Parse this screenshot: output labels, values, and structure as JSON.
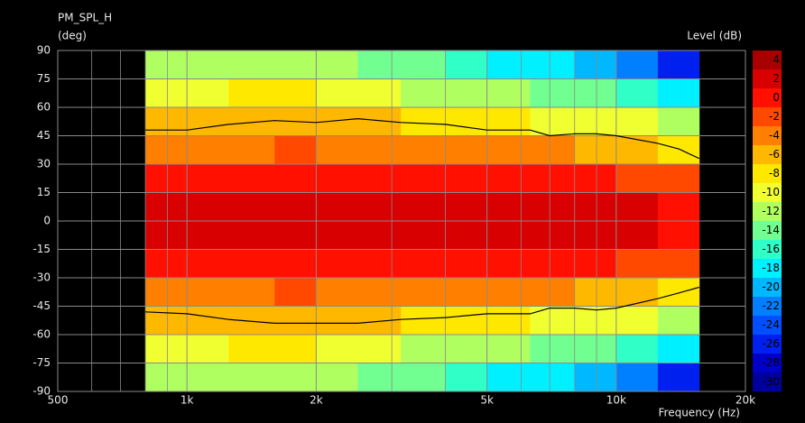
{
  "chart_data": {
    "type": "heatmap",
    "title": "PM_SPL_H",
    "y_label": "(deg)",
    "x_label": "Frequency (Hz)",
    "colorbar_label": "Level (dB)",
    "xlim": [
      500,
      20000
    ],
    "ylim": [
      -90,
      90
    ],
    "log_x": true,
    "grid": true,
    "xticks": [
      500,
      {
        "value": 1000,
        "label": "1k"
      },
      {
        "value": 2000,
        "label": "2k"
      },
      {
        "value": 5000,
        "label": "5k"
      },
      {
        "value": 10000,
        "label": "10k"
      },
      {
        "value": 20000,
        "label": "20k"
      }
    ],
    "xminor": [
      600,
      700,
      800,
      900,
      3000,
      4000,
      6000,
      7000,
      8000,
      9000
    ],
    "yticks": [
      90,
      75,
      60,
      45,
      30,
      15,
      0,
      -15,
      -30,
      -45,
      -60,
      -75,
      -90
    ],
    "x_edges": [
      800,
      1000,
      1250,
      1600,
      2000,
      2500,
      3150,
      4000,
      5000,
      6300,
      8000,
      10000,
      12500,
      15600
    ],
    "y_edges": [
      90,
      75,
      60,
      45,
      30,
      15,
      0,
      -15,
      -30,
      -45,
      -60,
      -75,
      -90
    ],
    "values": [
      [
        -13,
        -13,
        -12,
        -12,
        -13,
        -14,
        -15,
        -16,
        -18,
        -19,
        -21,
        -23,
        -26
      ],
      [
        -10,
        -10,
        -9,
        -9,
        -10,
        -11,
        -12,
        -12,
        -13,
        -14,
        -15,
        -17,
        -19
      ],
      [
        -7,
        -7,
        -7,
        -6,
        -7,
        -7,
        -8,
        -8,
        -9,
        -10,
        -10,
        -11,
        -13
      ],
      [
        -4,
        -4,
        -4,
        -3,
        -4,
        -4,
        -4,
        -4,
        -5,
        -5,
        -6,
        -6,
        -8
      ],
      [
        -1,
        -1,
        -1,
        -1,
        -1,
        -1,
        -1,
        -1,
        -1,
        -1,
        -1,
        -2,
        -3
      ],
      [
        1,
        1,
        1,
        1,
        1,
        1,
        1,
        1,
        1,
        1,
        1,
        1,
        0
      ],
      [
        1,
        1,
        1,
        1,
        1,
        1,
        1,
        1,
        1,
        1,
        1,
        1,
        0
      ],
      [
        -1,
        -1,
        -1,
        -1,
        -1,
        -1,
        -1,
        -1,
        -1,
        -1,
        -1,
        -2,
        -3
      ],
      [
        -4,
        -4,
        -4,
        -3,
        -4,
        -4,
        -4,
        -4,
        -5,
        -5,
        -6,
        -6,
        -8
      ],
      [
        -7,
        -7,
        -7,
        -6,
        -7,
        -7,
        -8,
        -8,
        -9,
        -10,
        -10,
        -11,
        -13
      ],
      [
        -10,
        -10,
        -9,
        -9,
        -10,
        -11,
        -12,
        -12,
        -13,
        -14,
        -15,
        -17,
        -19
      ],
      [
        -13,
        -13,
        -12,
        -12,
        -13,
        -14,
        -15,
        -16,
        -18,
        -19,
        -21,
        -23,
        -26
      ]
    ],
    "colorbar": {
      "levels": [
        4,
        2,
        0,
        -2,
        -4,
        -6,
        -8,
        -10,
        -12,
        -14,
        -16,
        -18,
        -20,
        -22,
        -24,
        -26,
        -28,
        -30
      ],
      "colors": [
        "#a80000",
        "#d80000",
        "#ff1000",
        "#ff4800",
        "#ff8000",
        "#ffb800",
        "#ffe800",
        "#f0ff30",
        "#b0ff60",
        "#70ff90",
        "#30ffc8",
        "#00f0ff",
        "#00b8ff",
        "#0080ff",
        "#0050ff",
        "#0020f0",
        "#0000c8",
        "#00009c"
      ]
    },
    "x": [
      800,
      1000,
      1250,
      1600,
      2000,
      2500,
      3150,
      4000,
      5000,
      6300,
      7000,
      8000,
      9000,
      10000,
      12500,
      14000,
      15600
    ],
    "series": [
      {
        "color": "#000000",
        "values": [
          48,
          48,
          51,
          53,
          52,
          54,
          52,
          51,
          48,
          48,
          45,
          46,
          46,
          45,
          41,
          38,
          33
        ]
      },
      {
        "color": "#000000",
        "values": [
          -48,
          -49,
          -52,
          -54,
          -54,
          -54,
          -52,
          -51,
          -49,
          -49,
          -46,
          -46,
          -47,
          -46,
          -41,
          -38,
          -35
        ]
      }
    ]
  }
}
